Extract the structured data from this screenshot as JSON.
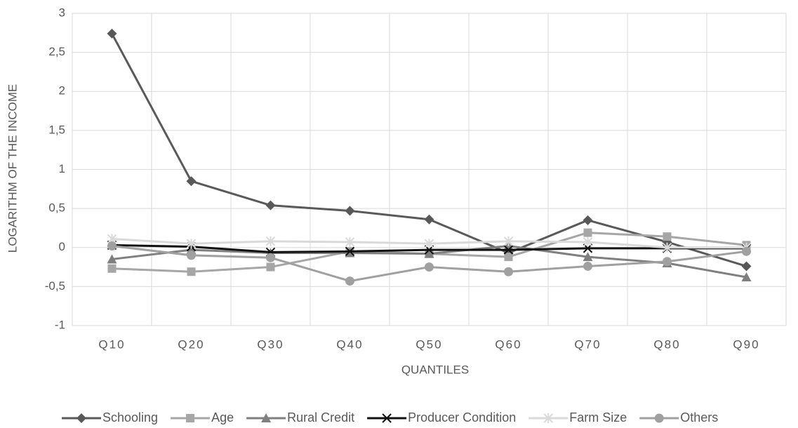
{
  "chart_data": {
    "type": "line",
    "x_label": "QUANTILES",
    "y_label": "LOGARITHM OF THE INCOME",
    "categories": [
      "Q10",
      "Q20",
      "Q30",
      "Q40",
      "Q50",
      "Q60",
      "Q70",
      "Q80",
      "Q90"
    ],
    "ylim": [
      -1,
      3
    ],
    "yticks": [
      -1,
      {
        "value": -0.5,
        "label": "-0,5"
      },
      0,
      {
        "value": 0.5,
        "label": "0,5"
      },
      1,
      {
        "value": 1.5,
        "label": "1,5"
      },
      2,
      {
        "value": 2.5,
        "label": "2,5"
      },
      3
    ],
    "grid": true,
    "legend": "bottom",
    "series": [
      {
        "name": "Schooling",
        "color": "#595959",
        "marker": "diamond",
        "values": [
          2.74,
          0.85,
          0.54,
          0.47,
          0.36,
          -0.07,
          0.35,
          0.07,
          -0.24
        ]
      },
      {
        "name": "Age",
        "color": "#a6a6a6",
        "marker": "square",
        "values": [
          -0.27,
          -0.31,
          -0.25,
          -0.05,
          -0.08,
          -0.12,
          0.19,
          0.14,
          0.03
        ]
      },
      {
        "name": "Rural Credit",
        "color": "#7f7f7f",
        "marker": "triangle",
        "values": [
          -0.15,
          -0.03,
          -0.07,
          -0.07,
          -0.08,
          0.02,
          -0.12,
          -0.2,
          -0.38
        ]
      },
      {
        "name": "Producer Condition",
        "color": "#111111",
        "marker": "x",
        "values": [
          0.03,
          0.01,
          -0.06,
          -0.05,
          -0.03,
          -0.03,
          -0.01,
          -0.01,
          -0.01
        ]
      },
      {
        "name": "Farm Size",
        "color": "#d9d9d9",
        "marker": "star",
        "values": [
          0.11,
          0.05,
          0.08,
          0.07,
          0.05,
          0.08,
          0.07,
          0.0,
          0.0
        ]
      },
      {
        "name": "Others",
        "color": "#a0a0a0",
        "marker": "circle",
        "values": [
          0.02,
          -0.1,
          -0.13,
          -0.43,
          -0.25,
          -0.31,
          -0.24,
          -0.18,
          -0.05
        ]
      }
    ]
  }
}
